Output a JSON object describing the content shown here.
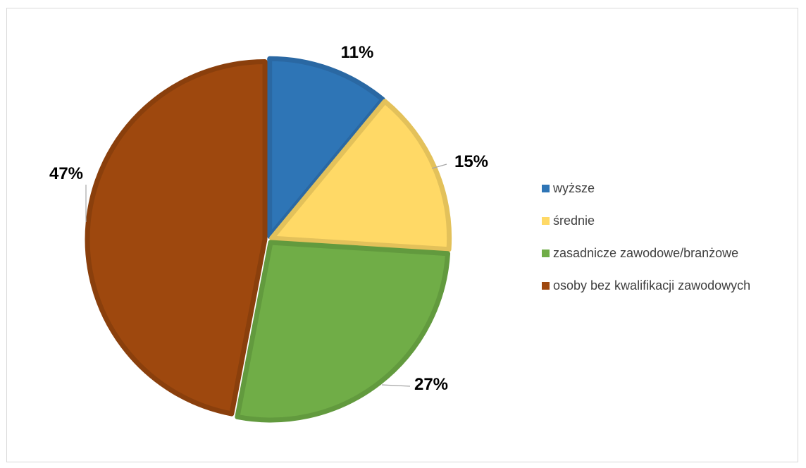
{
  "chart_data": {
    "type": "pie",
    "categories": [
      "wyższe",
      "średnie",
      "zasadnicze zawodowe/branżowe",
      "osoby bez kwalifikacji zawodowych"
    ],
    "values": [
      11,
      15,
      27,
      47
    ],
    "data_labels": [
      "11%",
      "15%",
      "27%",
      "47%"
    ],
    "colors": [
      "#2e75b6",
      "#ffd966",
      "#70ad47",
      "#9e480e"
    ],
    "border_colors": [
      "#2a68a3",
      "#e3c15a",
      "#629a3e",
      "#8a3f0c"
    ],
    "exploded": true,
    "legend_position": "right",
    "title": ""
  }
}
